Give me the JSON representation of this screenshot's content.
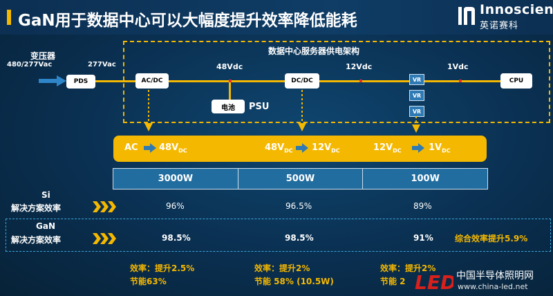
{
  "header": {
    "title": "GaN用于数据中心可以大幅度提升效率降低能耗",
    "logo_name": "Innoscience",
    "logo_sub": "英诺赛科"
  },
  "diagram": {
    "frame_title": "数据中心服务器供电架构",
    "transformer_label": "变压器",
    "transformer_voltage": "480/277Vac",
    "line_voltage": "277Vac",
    "bus_48": "48Vdc",
    "bus_12": "12Vdc",
    "bus_1": "1Vdc",
    "boxes": {
      "pds": "PDS",
      "acdc": "AC/DC",
      "dcdc": "DC/DC",
      "cpu": "CPU",
      "battery": "电池",
      "vr": "VR"
    },
    "psu_label": "PSU",
    "conversions": [
      {
        "from": "AC",
        "from_sub": "",
        "to": "48V",
        "to_sub": "DC"
      },
      {
        "from": "48V",
        "from_sub": "DC",
        "to": "12V",
        "to_sub": "DC"
      },
      {
        "from": "12V",
        "from_sub": "DC",
        "to": "1V",
        "to_sub": "DC"
      }
    ]
  },
  "table": {
    "powers": [
      "3000W",
      "500W",
      "100W"
    ],
    "si_label_line1": "Si",
    "si_label_line2": "解决方案效率",
    "si_values": [
      "96%",
      "96.5%",
      "89%"
    ],
    "gan_label_line1": "GaN",
    "gan_label_line2": "解决方案效率",
    "gan_values": [
      "98.5%",
      "98.5%",
      "91%"
    ],
    "overall": "综合效率提升5.9%"
  },
  "gains": [
    {
      "eff": "效率：提升2.5%",
      "save": "节能63%"
    },
    {
      "eff": "效率：提升2%",
      "save": "节能 58% (10.5W)"
    },
    {
      "eff": "效率：提升2%",
      "save": "节能 2"
    }
  ],
  "watermark": {
    "brand": "LED",
    "cn": "中国半导体照明网",
    "url": "www.china-led.net"
  },
  "colors": {
    "accent": "#f5b800",
    "table_blue": "#216da0",
    "tap_red": "#e83030"
  }
}
